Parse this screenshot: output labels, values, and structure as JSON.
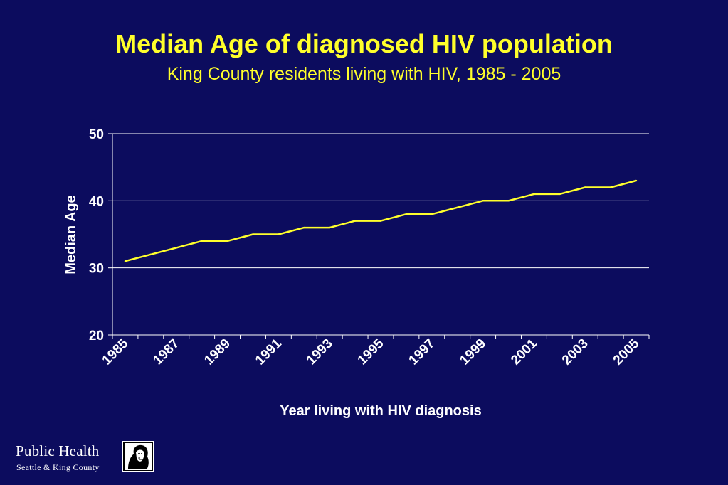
{
  "slide": {
    "title": "Median Age of diagnosed HIV population",
    "subtitle": "King County residents living with HIV, 1985 - 2005"
  },
  "chart_data": {
    "type": "line",
    "title": "",
    "xlabel": "Year living with HIV diagnosis",
    "ylabel": "Median Age",
    "x": [
      1985,
      1986,
      1987,
      1988,
      1989,
      1990,
      1991,
      1992,
      1993,
      1994,
      1995,
      1996,
      1997,
      1998,
      1999,
      2000,
      2001,
      2002,
      2003,
      2004,
      2005
    ],
    "x_tick_labels": [
      "1985",
      "1987",
      "1989",
      "1991",
      "1993",
      "1995",
      "1997",
      "1999",
      "2001",
      "2003",
      "2005"
    ],
    "series": [
      {
        "values": [
          31,
          32,
          33,
          34,
          34,
          35,
          35,
          36,
          36,
          37,
          37,
          38,
          38,
          39,
          40,
          40,
          41,
          41,
          42,
          42,
          43
        ],
        "color": "#ffff2b"
      }
    ],
    "ylim": [
      20,
      50
    ],
    "y_ticks": [
      20,
      30,
      40,
      50
    ],
    "grid": true,
    "legend": "none"
  },
  "logo": {
    "name": "Public Health",
    "org": "Seattle & King County",
    "icon": "portrait-icon"
  }
}
